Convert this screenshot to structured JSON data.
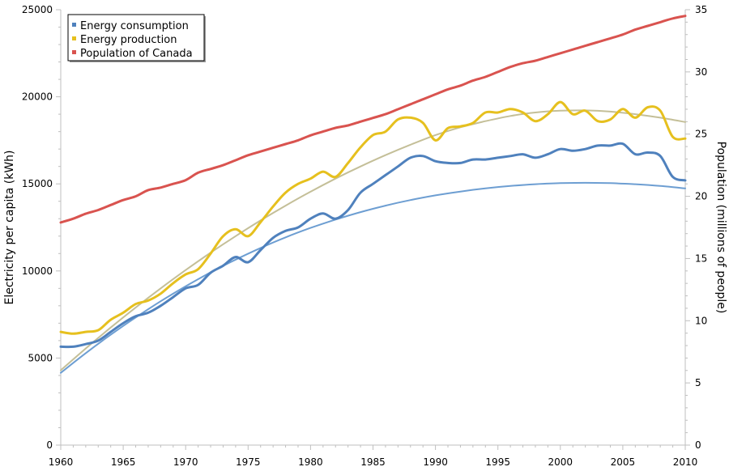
{
  "chart_data": {
    "type": "line",
    "xlim": [
      1960,
      2010
    ],
    "x_ticks": [
      1960,
      1965,
      1970,
      1975,
      1980,
      1985,
      1990,
      1995,
      2000,
      2005,
      2010
    ],
    "y_left": {
      "label": "Electricity per capita (kWh)",
      "lim": [
        0,
        25000
      ],
      "ticks": [
        0,
        5000,
        10000,
        15000,
        20000,
        25000
      ]
    },
    "y_right": {
      "label": "Population (millions of people)",
      "lim": [
        0,
        35
      ],
      "ticks": [
        0,
        5,
        10,
        15,
        20,
        25,
        30,
        35
      ]
    },
    "grid": false,
    "legend_position": "top-left",
    "legend": [
      {
        "label": "Energy consumption",
        "color": "#4f81bd"
      },
      {
        "label": "Energy production",
        "color": "#e6c01e"
      },
      {
        "label": "Population of Canada",
        "color": "#d9534f"
      }
    ],
    "series": [
      {
        "name": "Energy consumption",
        "axis": "left",
        "color": "#4f81bd",
        "x": [
          1960,
          1961,
          1962,
          1963,
          1964,
          1965,
          1966,
          1967,
          1968,
          1969,
          1970,
          1971,
          1972,
          1973,
          1974,
          1975,
          1976,
          1977,
          1978,
          1979,
          1980,
          1981,
          1982,
          1983,
          1984,
          1985,
          1986,
          1987,
          1988,
          1989,
          1990,
          1991,
          1992,
          1993,
          1994,
          1995,
          1996,
          1997,
          1998,
          1999,
          2000,
          2001,
          2002,
          2003,
          2004,
          2005,
          2006,
          2007,
          2008,
          2009,
          2010
        ],
        "y": [
          5650,
          5650,
          5800,
          6000,
          6500,
          7000,
          7400,
          7600,
          8000,
          8500,
          9000,
          9200,
          9900,
          10300,
          10800,
          10500,
          11200,
          11900,
          12300,
          12500,
          13000,
          13300,
          13000,
          13500,
          14500,
          15000,
          15500,
          16000,
          16500,
          16600,
          16300,
          16200,
          16200,
          16400,
          16400,
          16500,
          16600,
          16700,
          16500,
          16700,
          17000,
          16900,
          17000,
          17200,
          17200,
          17300,
          16700,
          16800,
          16600,
          15400,
          15200
        ]
      },
      {
        "name": "Energy production",
        "axis": "left",
        "color": "#e6c01e",
        "x": [
          1960,
          1961,
          1962,
          1963,
          1964,
          1965,
          1966,
          1967,
          1968,
          1969,
          1970,
          1971,
          1972,
          1973,
          1974,
          1975,
          1976,
          1977,
          1978,
          1979,
          1980,
          1981,
          1982,
          1983,
          1984,
          1985,
          1986,
          1987,
          1988,
          1989,
          1990,
          1991,
          1992,
          1993,
          1994,
          1995,
          1996,
          1997,
          1998,
          1999,
          2000,
          2001,
          2002,
          2003,
          2004,
          2005,
          2006,
          2007,
          2008,
          2009,
          2010
        ],
        "y": [
          6500,
          6400,
          6500,
          6600,
          7200,
          7600,
          8100,
          8300,
          8700,
          9300,
          9800,
          10100,
          11000,
          12000,
          12400,
          12000,
          12800,
          13700,
          14500,
          15000,
          15300,
          15700,
          15400,
          16200,
          17100,
          17800,
          18000,
          18700,
          18800,
          18500,
          17500,
          18200,
          18300,
          18500,
          19100,
          19100,
          19300,
          19100,
          18600,
          19000,
          19700,
          19000,
          19200,
          18600,
          18700,
          19300,
          18800,
          19400,
          19200,
          17700,
          17600
        ]
      },
      {
        "name": "Population of Canada",
        "axis": "right",
        "color": "#d9534f",
        "x": [
          1960,
          1961,
          1962,
          1963,
          1964,
          1965,
          1966,
          1967,
          1968,
          1969,
          1970,
          1971,
          1972,
          1973,
          1974,
          1975,
          1976,
          1977,
          1978,
          1979,
          1980,
          1981,
          1982,
          1983,
          1984,
          1985,
          1986,
          1987,
          1988,
          1989,
          1990,
          1991,
          1992,
          1993,
          1994,
          1995,
          1996,
          1997,
          1998,
          1999,
          2000,
          2001,
          2002,
          2003,
          2004,
          2005,
          2006,
          2007,
          2008,
          2009,
          2010
        ],
        "y": [
          17.9,
          18.2,
          18.6,
          18.9,
          19.3,
          19.7,
          20.0,
          20.5,
          20.7,
          21.0,
          21.3,
          21.9,
          22.2,
          22.5,
          22.9,
          23.3,
          23.6,
          23.9,
          24.2,
          24.5,
          24.9,
          25.2,
          25.5,
          25.7,
          26.0,
          26.3,
          26.6,
          27.0,
          27.4,
          27.8,
          28.2,
          28.6,
          28.9,
          29.3,
          29.6,
          30.0,
          30.4,
          30.7,
          30.9,
          31.2,
          31.5,
          31.8,
          32.1,
          32.4,
          32.7,
          33.0,
          33.4,
          33.7,
          34.0,
          34.3,
          34.5
        ]
      },
      {
        "name": "",
        "axis": "left",
        "color": "#6d9ed2",
        "trend": true,
        "x": [
          1960,
          1962,
          1964,
          1966,
          1968,
          1970,
          1972,
          1974,
          1976,
          1978,
          1980,
          1982,
          1984,
          1986,
          1988,
          1990,
          1992,
          1994,
          1996,
          1998,
          2000,
          2002,
          2004,
          2006,
          2008,
          2010
        ],
        "y": [
          4150,
          5280,
          6340,
          7330,
          8260,
          9120,
          9920,
          10650,
          11320,
          11930,
          12470,
          12950,
          13380,
          13750,
          14070,
          14340,
          14560,
          14740,
          14880,
          14980,
          15040,
          15060,
          15040,
          14980,
          14880,
          14740
        ]
      },
      {
        "name": "",
        "axis": "left",
        "color": "#c4bf98",
        "trend": true,
        "x": [
          1960,
          1962,
          1964,
          1966,
          1968,
          1970,
          1972,
          1974,
          1976,
          1978,
          1980,
          1982,
          1984,
          1986,
          1988,
          1990,
          1992,
          1994,
          1996,
          1998,
          2000,
          2002,
          2004,
          2006,
          2008,
          2010
        ],
        "y": [
          4300,
          5550,
          6750,
          7900,
          9000,
          10050,
          11050,
          12000,
          12900,
          13750,
          14550,
          15300,
          16000,
          16650,
          17250,
          17800,
          18250,
          18600,
          18900,
          19100,
          19200,
          19220,
          19150,
          19000,
          18800,
          18550
        ]
      }
    ]
  }
}
